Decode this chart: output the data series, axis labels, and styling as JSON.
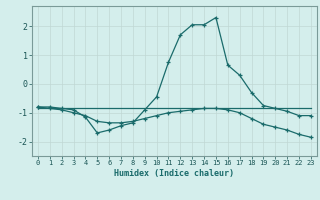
{
  "xlabel": "Humidex (Indice chaleur)",
  "ylabel": "",
  "bg_color": "#d4eeec",
  "line_color": "#1a6b6b",
  "grid_color": "#c0d8d5",
  "xlim": [
    -0.5,
    23.5
  ],
  "ylim": [
    -2.5,
    2.7
  ],
  "yticks": [
    -2,
    -1,
    0,
    1,
    2
  ],
  "xticks": [
    0,
    1,
    2,
    3,
    4,
    5,
    6,
    7,
    8,
    9,
    10,
    11,
    12,
    13,
    14,
    15,
    16,
    17,
    18,
    19,
    20,
    21,
    22,
    23
  ],
  "line1_x": [
    0,
    1,
    2,
    3,
    4,
    5,
    6,
    7,
    8,
    9,
    10,
    11,
    12,
    13,
    14,
    15,
    16,
    17,
    18,
    19,
    20,
    21,
    22,
    23
  ],
  "line1_y": [
    -0.8,
    -0.8,
    -0.85,
    -0.9,
    -1.15,
    -1.7,
    -1.6,
    -1.45,
    -1.35,
    -0.9,
    -0.45,
    0.75,
    1.7,
    2.05,
    2.05,
    2.3,
    0.65,
    0.3,
    -0.3,
    -0.75,
    -0.85,
    -0.95,
    -1.1,
    -1.1
  ],
  "line2_x": [
    0,
    23
  ],
  "line2_y": [
    -0.85,
    -0.85
  ],
  "line3_x": [
    0,
    1,
    2,
    3,
    4,
    5,
    6,
    7,
    8,
    9,
    10,
    11,
    12,
    13,
    14,
    15,
    16,
    17,
    18,
    19,
    20,
    21,
    22,
    23
  ],
  "line3_y": [
    -0.8,
    -0.85,
    -0.9,
    -1.0,
    -1.1,
    -1.3,
    -1.35,
    -1.35,
    -1.3,
    -1.2,
    -1.1,
    -1.0,
    -0.95,
    -0.9,
    -0.85,
    -0.85,
    -0.9,
    -1.0,
    -1.2,
    -1.4,
    -1.5,
    -1.6,
    -1.75,
    -1.85
  ]
}
